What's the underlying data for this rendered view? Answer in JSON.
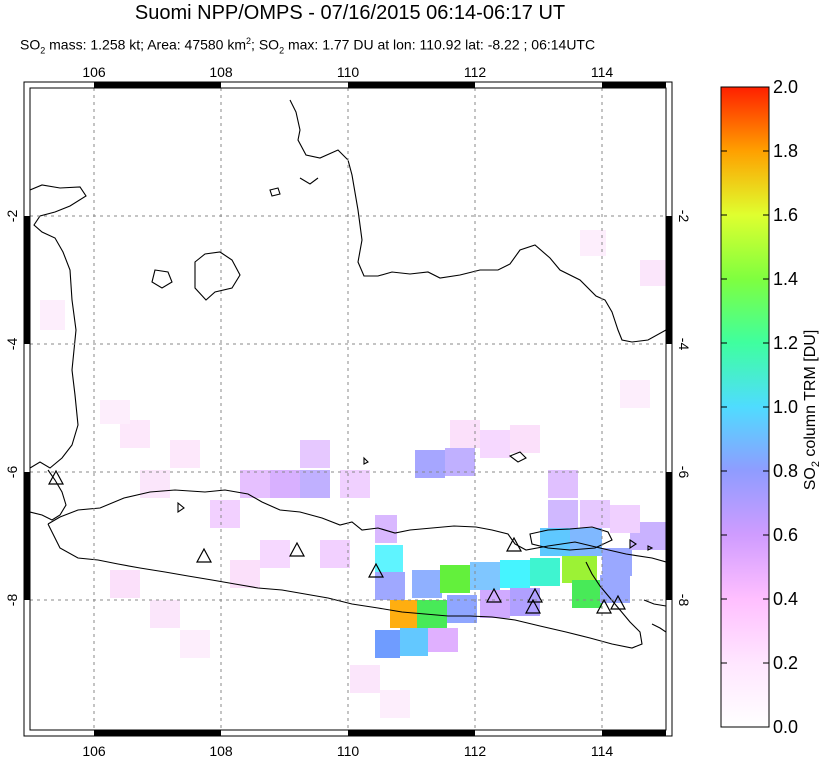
{
  "header": {
    "title": "Suomi NPP/OMPS - 07/16/2015 06:14-06:17 UT",
    "stats": {
      "mass_prefix": "SO",
      "mass_text": " mass: 1.258 kt; Area: 47580 km",
      "area_sup": "2",
      "max_prefix": "; SO",
      "max_text": " max: 1.77 DU at lon: 110.92 lat: -8.22 ; 06:14UTC",
      "sub2": "2"
    }
  },
  "map": {
    "lon_ticks": [
      "106",
      "108",
      "110",
      "112",
      "114"
    ],
    "lat_ticks_left": [
      "-2",
      "-4",
      "-6",
      "-8"
    ],
    "lat_ticks_right": [
      "-2",
      "-4",
      "-6",
      "-8"
    ],
    "lon_range": [
      105,
      115
    ],
    "lat_range": [
      -10,
      0
    ],
    "grid": true,
    "volcano_markers_count": 12
  },
  "colorbar": {
    "ticks": [
      "0.0",
      "0.2",
      "0.4",
      "0.6",
      "0.8",
      "1.0",
      "1.2",
      "1.4",
      "1.6",
      "1.8",
      "2.0"
    ],
    "label": "SO",
    "label_sub": "2",
    "label_rest": " column TRM [DU]",
    "range": [
      0,
      2
    ],
    "colors": [
      "#ffffff",
      "#ffc8ff",
      "#9b9bff",
      "#3ff3ff",
      "#3fff3f",
      "#ffff1f",
      "#ff7f00",
      "#ff1f00"
    ]
  }
}
